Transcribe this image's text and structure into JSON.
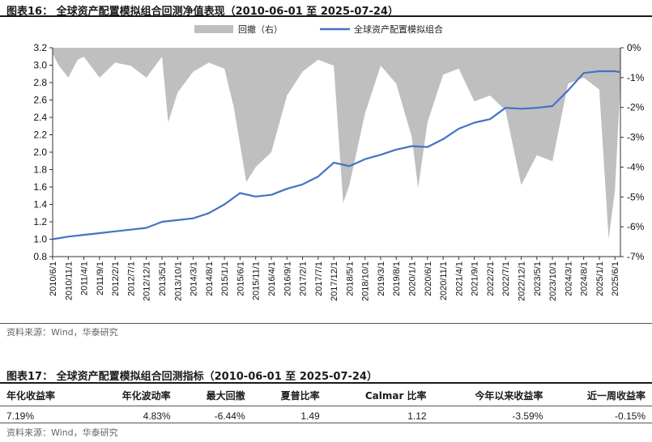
{
  "figure1": {
    "title": "图表16：  全球资产配置模拟组合回测净值表现（2010-06-01 至 2025-07-24）",
    "source": "资料来源：Wind，华泰研究"
  },
  "figure2": {
    "title": "图表17：  全球资产配置模拟组合回测指标（2010-06-01 至 2025-07-24）",
    "source": "资料来源：Wind，华泰研究",
    "headers": [
      "年化收益率",
      "年化波动率",
      "最大回撤",
      "夏普比率",
      "Calmar 比率",
      "今年以来收益率",
      "近一周收益率"
    ],
    "values": [
      "7.19%",
      "4.83%",
      "-6.44%",
      "1.49",
      "1.12",
      "-3.59%",
      "-0.15%"
    ]
  },
  "chart_data": {
    "type": "line",
    "series": [
      {
        "name": "回撤（右）",
        "type": "area",
        "axis": "right",
        "color": "#bfbfbf"
      },
      {
        "name": "全球资产配置模拟组合",
        "type": "line",
        "axis": "left",
        "color": "#4472c4"
      }
    ],
    "x_tick_labels": [
      "2010/6/1",
      "2010/11/1",
      "2011/4/1",
      "2011/9/1",
      "2012/2/1",
      "2012/7/1",
      "2012/12/1",
      "2013/5/1",
      "2013/10/1",
      "2014/3/1",
      "2014/8/1",
      "2015/1/1",
      "2015/6/1",
      "2015/11/1",
      "2016/4/1",
      "2016/9/1",
      "2017/2/1",
      "2017/7/1",
      "2017/12/1",
      "2018/5/1",
      "2018/10/1",
      "2019/3/1",
      "2019/8/1",
      "2020/1/1",
      "2020/6/1",
      "2020/11/1",
      "2021/4/1",
      "2021/9/1",
      "2022/2/1",
      "2022/7/1",
      "2022/12/1",
      "2023/5/1",
      "2023/10/1",
      "2024/3/1",
      "2024/8/1",
      "2025/1/1",
      "2025/6/1"
    ],
    "y_left": {
      "min": 0.8,
      "max": 3.2,
      "ticks": [
        "0.8",
        "1.0",
        "1.2",
        "1.4",
        "1.6",
        "1.8",
        "2.0",
        "2.2",
        "2.4",
        "2.6",
        "2.8",
        "3.0",
        "3.2"
      ]
    },
    "y_right": {
      "min": -7,
      "max": 0,
      "ticks": [
        "0%",
        "-1%",
        "-2%",
        "-3%",
        "-4%",
        "-5%",
        "-6%",
        "-7%"
      ]
    },
    "nav_points": [
      [
        "2010/6/1",
        1.0
      ],
      [
        "2010/11/1",
        1.03
      ],
      [
        "2011/4/1",
        1.05
      ],
      [
        "2011/9/1",
        1.07
      ],
      [
        "2012/2/1",
        1.09
      ],
      [
        "2012/7/1",
        1.11
      ],
      [
        "2012/12/1",
        1.13
      ],
      [
        "2013/5/1",
        1.2
      ],
      [
        "2013/10/1",
        1.22
      ],
      [
        "2014/3/1",
        1.24
      ],
      [
        "2014/8/1",
        1.3
      ],
      [
        "2015/1/1",
        1.4
      ],
      [
        "2015/6/1",
        1.53
      ],
      [
        "2015/11/1",
        1.49
      ],
      [
        "2016/4/1",
        1.51
      ],
      [
        "2016/9/1",
        1.58
      ],
      [
        "2017/2/1",
        1.63
      ],
      [
        "2017/7/1",
        1.72
      ],
      [
        "2017/12/1",
        1.88
      ],
      [
        "2018/5/1",
        1.84
      ],
      [
        "2018/10/1",
        1.92
      ],
      [
        "2019/3/1",
        1.97
      ],
      [
        "2019/8/1",
        2.03
      ],
      [
        "2020/1/1",
        2.07
      ],
      [
        "2020/6/1",
        2.06
      ],
      [
        "2020/11/1",
        2.15
      ],
      [
        "2021/4/1",
        2.27
      ],
      [
        "2021/9/1",
        2.34
      ],
      [
        "2022/2/1",
        2.38
      ],
      [
        "2022/7/1",
        2.51
      ],
      [
        "2022/12/1",
        2.5
      ],
      [
        "2023/5/1",
        2.51
      ],
      [
        "2023/10/1",
        2.53
      ],
      [
        "2024/3/1",
        2.71
      ],
      [
        "2024/8/1",
        2.91
      ],
      [
        "2025/1/1",
        2.93
      ],
      [
        "2025/6/1",
        2.93
      ],
      [
        "2025/7/24",
        2.92
      ]
    ],
    "drawdown_points": [
      [
        "2010/6/1",
        -0.2
      ],
      [
        "2010/8/1",
        -0.6
      ],
      [
        "2010/11/1",
        -1.0
      ],
      [
        "2011/2/1",
        -0.4
      ],
      [
        "2011/4/1",
        -0.3
      ],
      [
        "2011/9/1",
        -1.0
      ],
      [
        "2012/2/1",
        -0.5
      ],
      [
        "2012/7/1",
        -0.6
      ],
      [
        "2012/12/1",
        -1.0
      ],
      [
        "2013/5/1",
        -0.3
      ],
      [
        "2013/7/1",
        -2.5
      ],
      [
        "2013/10/1",
        -1.5
      ],
      [
        "2014/3/1",
        -0.8
      ],
      [
        "2014/8/1",
        -0.5
      ],
      [
        "2015/1/1",
        -0.7
      ],
      [
        "2015/4/1",
        -2.0
      ],
      [
        "2015/8/1",
        -4.5
      ],
      [
        "2015/11/1",
        -4.0
      ],
      [
        "2016/4/1",
        -3.5
      ],
      [
        "2016/9/1",
        -1.6
      ],
      [
        "2017/2/1",
        -0.8
      ],
      [
        "2017/7/1",
        -0.4
      ],
      [
        "2017/12/1",
        -0.6
      ],
      [
        "2018/3/1",
        -5.2
      ],
      [
        "2018/5/1",
        -4.6
      ],
      [
        "2018/10/1",
        -2.2
      ],
      [
        "2019/3/1",
        -0.6
      ],
      [
        "2019/8/1",
        -1.2
      ],
      [
        "2020/1/1",
        -3.0
      ],
      [
        "2020/3/1",
        -4.7
      ],
      [
        "2020/6/1",
        -2.5
      ],
      [
        "2020/11/1",
        -0.9
      ],
      [
        "2021/4/1",
        -0.7
      ],
      [
        "2021/9/1",
        -1.8
      ],
      [
        "2022/2/1",
        -1.6
      ],
      [
        "2022/7/1",
        -2.1
      ],
      [
        "2022/12/1",
        -4.6
      ],
      [
        "2023/5/1",
        -3.6
      ],
      [
        "2023/10/1",
        -3.8
      ],
      [
        "2024/3/1",
        -1.2
      ],
      [
        "2024/8/1",
        -1.0
      ],
      [
        "2025/1/1",
        -1.4
      ],
      [
        "2025/4/1",
        -6.4
      ],
      [
        "2025/6/1",
        -4.8
      ],
      [
        "2025/7/24",
        -1.2
      ]
    ]
  }
}
